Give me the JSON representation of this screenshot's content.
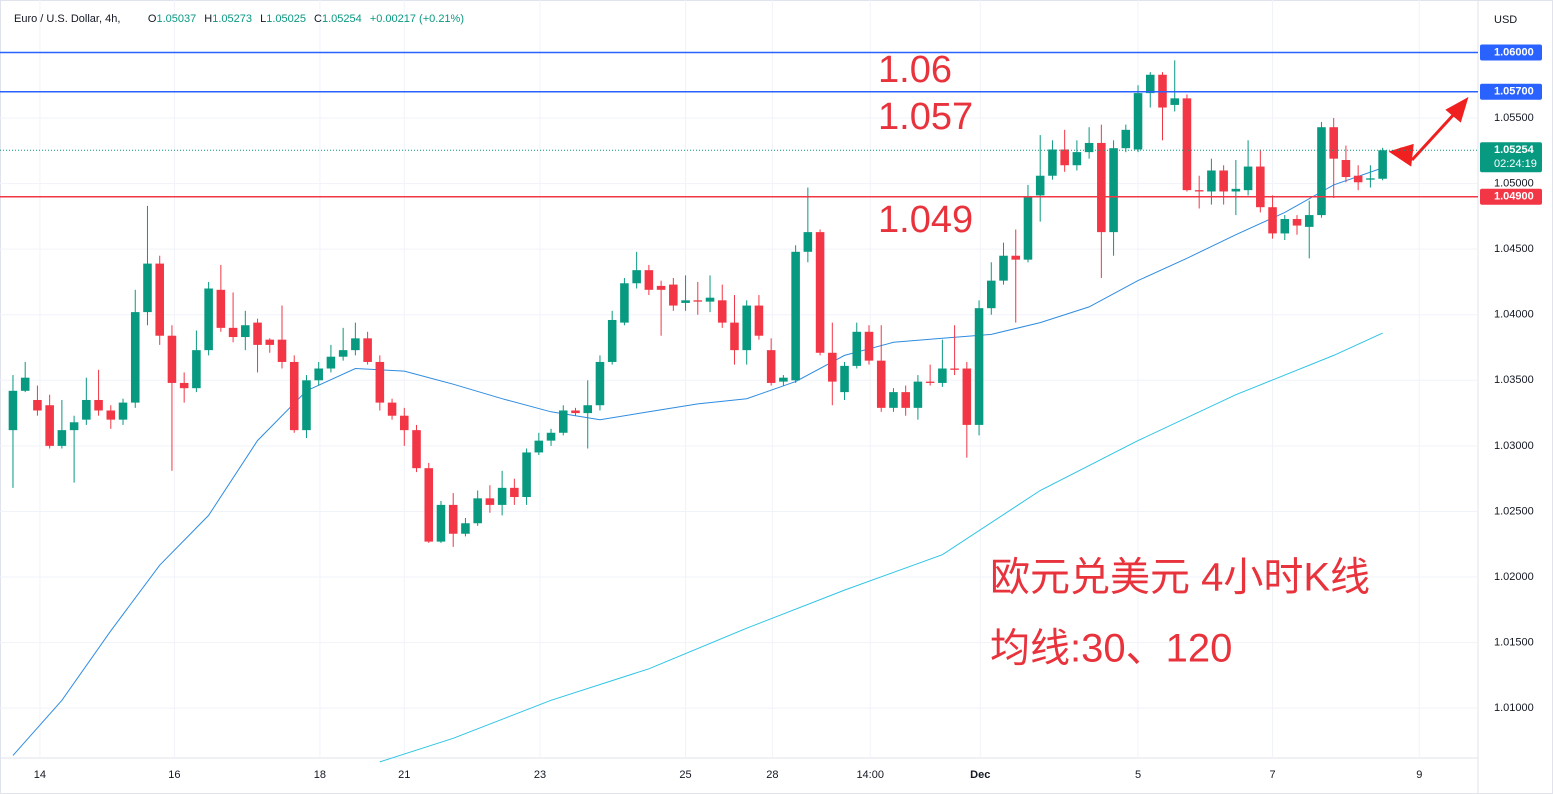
{
  "chart_data": {
    "type": "candlestick",
    "header": {
      "symbol": "Euro / U.S. Dollar, 4h,",
      "open_label": "O",
      "open": 1.05037,
      "high_label": "H",
      "high": 1.05273,
      "low_label": "L",
      "low": 1.05025,
      "close_label": "C",
      "close": 1.05254,
      "change": "+0.00217 (+0.21%)"
    },
    "currency": "USD",
    "up_color": "#089981",
    "down_color": "#f23645",
    "xlim": [
      -1.06,
      119.8
    ],
    "ylim": [
      1.0062,
      1.064
    ],
    "yticks": [
      {
        "value": 1.01,
        "label": "1.01000"
      },
      {
        "value": 1.015,
        "label": "1.01500"
      },
      {
        "value": 1.02,
        "label": "1.02000"
      },
      {
        "value": 1.025,
        "label": "1.02500"
      },
      {
        "value": 1.03,
        "label": "1.03000"
      },
      {
        "value": 1.035,
        "label": "1.03500"
      },
      {
        "value": 1.04,
        "label": "1.04000"
      },
      {
        "value": 1.045,
        "label": "1.04500"
      },
      {
        "value": 1.05,
        "label": "1.05000"
      },
      {
        "value": 1.055,
        "label": "1.05500"
      }
    ],
    "xticks": [
      {
        "value": 2.2,
        "label": "14"
      },
      {
        "value": 13.2,
        "label": "16"
      },
      {
        "value": 25.1,
        "label": "18"
      },
      {
        "value": 32.0,
        "label": "21"
      },
      {
        "value": 43.1,
        "label": "23"
      },
      {
        "value": 55.0,
        "label": "25"
      },
      {
        "value": 62.1,
        "label": "28"
      },
      {
        "value": 70.1,
        "label": "14:00"
      },
      {
        "value": 79.1,
        "label": "Dec"
      },
      {
        "value": 92.0,
        "label": "5"
      },
      {
        "value": 103.0,
        "label": "7"
      },
      {
        "value": 115.0,
        "label": "9"
      }
    ],
    "grid": true,
    "hlines": [
      {
        "value": 1.06,
        "label": "1.06000",
        "color": "#2962ff"
      },
      {
        "value": 1.057,
        "label": "1.05700",
        "color": "#2962ff"
      },
      {
        "value": 1.049,
        "label": "1.04900",
        "color": "#f23645"
      }
    ],
    "last_price": {
      "value": 1.05254,
      "countdown": "02:24:19",
      "color": "#089981"
    },
    "annotations": [
      {
        "text": "1.06"
      },
      {
        "text": "1.057"
      },
      {
        "text": "1.049"
      },
      {
        "text": "欧元兑美元 4小时K线"
      },
      {
        "text": "均线:30、120"
      }
    ],
    "candles": [
      {
        "open": 1.0312,
        "high": 1.0354,
        "low": 1.0268,
        "close": 1.0342
      },
      {
        "open": 1.0342,
        "high": 1.0364,
        "low": 1.0341,
        "close": 1.0352
      },
      {
        "open": 1.0335,
        "high": 1.0346,
        "low": 1.0323,
        "close": 1.0327
      },
      {
        "open": 1.0331,
        "high": 1.0339,
        "low": 1.0298,
        "close": 1.03
      },
      {
        "open": 1.03,
        "high": 1.0335,
        "low": 1.0298,
        "close": 1.0312
      },
      {
        "open": 1.0312,
        "high": 1.0323,
        "low": 1.0272,
        "close": 1.0318
      },
      {
        "open": 1.032,
        "high": 1.0352,
        "low": 1.0316,
        "close": 1.0335
      },
      {
        "open": 1.0335,
        "high": 1.0358,
        "low": 1.0323,
        "close": 1.0327
      },
      {
        "open": 1.0327,
        "high": 1.0331,
        "low": 1.0313,
        "close": 1.032
      },
      {
        "open": 1.032,
        "high": 1.0336,
        "low": 1.0316,
        "close": 1.0333
      },
      {
        "open": 1.0333,
        "high": 1.0419,
        "low": 1.0329,
        "close": 1.0402
      },
      {
        "open": 1.0402,
        "high": 1.0483,
        "low": 1.0392,
        "close": 1.0439
      },
      {
        "open": 1.0439,
        "high": 1.0445,
        "low": 1.0377,
        "close": 1.0384
      },
      {
        "open": 1.0384,
        "high": 1.0392,
        "low": 1.0281,
        "close": 1.0348
      },
      {
        "open": 1.0348,
        "high": 1.0356,
        "low": 1.0333,
        "close": 1.0344
      },
      {
        "open": 1.0344,
        "high": 1.0388,
        "low": 1.0341,
        "close": 1.0373
      },
      {
        "open": 1.0373,
        "high": 1.0425,
        "low": 1.0369,
        "close": 1.042
      },
      {
        "open": 1.0419,
        "high": 1.0438,
        "low": 1.0387,
        "close": 1.039
      },
      {
        "open": 1.039,
        "high": 1.0417,
        "low": 1.0379,
        "close": 1.0383
      },
      {
        "open": 1.0383,
        "high": 1.0403,
        "low": 1.0373,
        "close": 1.0392
      },
      {
        "open": 1.0394,
        "high": 1.0397,
        "low": 1.0356,
        "close": 1.0377
      },
      {
        "open": 1.0381,
        "high": 1.0382,
        "low": 1.0371,
        "close": 1.0377
      },
      {
        "open": 1.0381,
        "high": 1.0407,
        "low": 1.0359,
        "close": 1.0364
      },
      {
        "open": 1.0364,
        "high": 1.0369,
        "low": 1.031,
        "close": 1.0312
      },
      {
        "open": 1.0312,
        "high": 1.0354,
        "low": 1.0306,
        "close": 1.035
      },
      {
        "open": 1.035,
        "high": 1.0364,
        "low": 1.0346,
        "close": 1.0359
      },
      {
        "open": 1.0359,
        "high": 1.0377,
        "low": 1.0356,
        "close": 1.0368
      },
      {
        "open": 1.0368,
        "high": 1.039,
        "low": 1.0365,
        "close": 1.0373
      },
      {
        "open": 1.0373,
        "high": 1.0394,
        "low": 1.0369,
        "close": 1.0382
      },
      {
        "open": 1.0382,
        "high": 1.0387,
        "low": 1.0362,
        "close": 1.0364
      },
      {
        "open": 1.0364,
        "high": 1.0369,
        "low": 1.0327,
        "close": 1.0333
      },
      {
        "open": 1.0333,
        "high": 1.0336,
        "low": 1.032,
        "close": 1.0323
      },
      {
        "open": 1.0323,
        "high": 1.0329,
        "low": 1.03,
        "close": 1.0312
      },
      {
        "open": 1.0312,
        "high": 1.0316,
        "low": 1.028,
        "close": 1.0283
      },
      {
        "open": 1.0283,
        "high": 1.0287,
        "low": 1.0226,
        "close": 1.0227
      },
      {
        "open": 1.0227,
        "high": 1.0258,
        "low": 1.0226,
        "close": 1.0255
      },
      {
        "open": 1.0255,
        "high": 1.0264,
        "low": 1.0223,
        "close": 1.0233
      },
      {
        "open": 1.0233,
        "high": 1.0245,
        "low": 1.0231,
        "close": 1.0241
      },
      {
        "open": 1.0241,
        "high": 1.0266,
        "low": 1.0239,
        "close": 1.026
      },
      {
        "open": 1.026,
        "high": 1.027,
        "low": 1.0249,
        "close": 1.0255
      },
      {
        "open": 1.0255,
        "high": 1.0281,
        "low": 1.0247,
        "close": 1.0268
      },
      {
        "open": 1.0268,
        "high": 1.0275,
        "low": 1.0255,
        "close": 1.0261
      },
      {
        "open": 1.0261,
        "high": 1.0298,
        "low": 1.0255,
        "close": 1.0295
      },
      {
        "open": 1.0295,
        "high": 1.031,
        "low": 1.0293,
        "close": 1.0304
      },
      {
        "open": 1.0304,
        "high": 1.0313,
        "low": 1.03,
        "close": 1.031
      },
      {
        "open": 1.031,
        "high": 1.0331,
        "low": 1.0308,
        "close": 1.0327
      },
      {
        "open": 1.0327,
        "high": 1.0329,
        "low": 1.0323,
        "close": 1.0325
      },
      {
        "open": 1.0325,
        "high": 1.035,
        "low": 1.0298,
        "close": 1.0331
      },
      {
        "open": 1.0331,
        "high": 1.0369,
        "low": 1.0327,
        "close": 1.0364
      },
      {
        "open": 1.0364,
        "high": 1.0403,
        "low": 1.0362,
        "close": 1.0396
      },
      {
        "open": 1.0394,
        "high": 1.0428,
        "low": 1.0392,
        "close": 1.0424
      },
      {
        "open": 1.0424,
        "high": 1.0448,
        "low": 1.042,
        "close": 1.0434
      },
      {
        "open": 1.0434,
        "high": 1.0438,
        "low": 1.0415,
        "close": 1.0419
      },
      {
        "open": 1.0422,
        "high": 1.0426,
        "low": 1.0384,
        "close": 1.0419
      },
      {
        "open": 1.0423,
        "high": 1.0428,
        "low": 1.0403,
        "close": 1.0407
      },
      {
        "open": 1.0409,
        "high": 1.043,
        "low": 1.0403,
        "close": 1.0411
      },
      {
        "open": 1.0411,
        "high": 1.0425,
        "low": 1.04,
        "close": 1.041
      },
      {
        "open": 1.041,
        "high": 1.043,
        "low": 1.0402,
        "close": 1.0413
      },
      {
        "open": 1.0411,
        "high": 1.0423,
        "low": 1.039,
        "close": 1.0394
      },
      {
        "open": 1.0394,
        "high": 1.0415,
        "low": 1.0362,
        "close": 1.0373
      },
      {
        "open": 1.0373,
        "high": 1.0411,
        "low": 1.0362,
        "close": 1.0407
      },
      {
        "open": 1.0407,
        "high": 1.0415,
        "low": 1.0381,
        "close": 1.0384
      },
      {
        "open": 1.0373,
        "high": 1.0382,
        "low": 1.0346,
        "close": 1.0348
      },
      {
        "open": 1.0349,
        "high": 1.0354,
        "low": 1.0346,
        "close": 1.0352
      },
      {
        "open": 1.035,
        "high": 1.0453,
        "low": 1.0348,
        "close": 1.0448
      },
      {
        "open": 1.0448,
        "high": 1.0497,
        "low": 1.044,
        "close": 1.0463
      },
      {
        "open": 1.0463,
        "high": 1.0465,
        "low": 1.0369,
        "close": 1.0371
      },
      {
        "open": 1.0371,
        "high": 1.0394,
        "low": 1.0331,
        "close": 1.0349
      },
      {
        "open": 1.0341,
        "high": 1.0364,
        "low": 1.0335,
        "close": 1.0361
      },
      {
        "open": 1.0361,
        "high": 1.0394,
        "low": 1.0359,
        "close": 1.0387
      },
      {
        "open": 1.0387,
        "high": 1.0392,
        "low": 1.0362,
        "close": 1.0365
      },
      {
        "open": 1.0365,
        "high": 1.0392,
        "low": 1.0326,
        "close": 1.0329
      },
      {
        "open": 1.0329,
        "high": 1.0344,
        "low": 1.0326,
        "close": 1.0341
      },
      {
        "open": 1.0341,
        "high": 1.0346,
        "low": 1.0323,
        "close": 1.0329
      },
      {
        "open": 1.0329,
        "high": 1.0354,
        "low": 1.032,
        "close": 1.0349
      },
      {
        "open": 1.0349,
        "high": 1.0362,
        "low": 1.0346,
        "close": 1.0348
      },
      {
        "open": 1.0348,
        "high": 1.0381,
        "low": 1.0345,
        "close": 1.0359
      },
      {
        "open": 1.0359,
        "high": 1.0392,
        "low": 1.0354,
        "close": 1.0358
      },
      {
        "open": 1.0359,
        "high": 1.0364,
        "low": 1.0291,
        "close": 1.0316
      },
      {
        "open": 1.0316,
        "high": 1.0411,
        "low": 1.0308,
        "close": 1.0405
      },
      {
        "open": 1.0405,
        "high": 1.044,
        "low": 1.04,
        "close": 1.0426
      },
      {
        "open": 1.0426,
        "high": 1.0455,
        "low": 1.0423,
        "close": 1.0445
      },
      {
        "open": 1.0445,
        "high": 1.0465,
        "low": 1.0394,
        "close": 1.0442
      },
      {
        "open": 1.0442,
        "high": 1.0499,
        "low": 1.044,
        "close": 1.049
      },
      {
        "open": 1.0491,
        "high": 1.0537,
        "low": 1.0471,
        "close": 1.0506
      },
      {
        "open": 1.0506,
        "high": 1.0533,
        "low": 1.0503,
        "close": 1.0526
      },
      {
        "open": 1.0526,
        "high": 1.0541,
        "low": 1.0509,
        "close": 1.0514
      },
      {
        "open": 1.0514,
        "high": 1.0533,
        "low": 1.051,
        "close": 1.0524
      },
      {
        "open": 1.0524,
        "high": 1.0543,
        "low": 1.0519,
        "close": 1.0531
      },
      {
        "open": 1.0531,
        "high": 1.0545,
        "low": 1.0428,
        "close": 1.0463
      },
      {
        "open": 1.0463,
        "high": 1.0533,
        "low": 1.0445,
        "close": 1.0527
      },
      {
        "open": 1.0527,
        "high": 1.0545,
        "low": 1.0524,
        "close": 1.0541
      },
      {
        "open": 1.0526,
        "high": 1.0575,
        "low": 1.0524,
        "close": 1.0569
      },
      {
        "open": 1.0569,
        "high": 1.0585,
        "low": 1.0558,
        "close": 1.0583
      },
      {
        "open": 1.0583,
        "high": 1.0585,
        "low": 1.0533,
        "close": 1.0558
      },
      {
        "open": 1.056,
        "high": 1.0594,
        "low": 1.0555,
        "close": 1.0565
      },
      {
        "open": 1.0565,
        "high": 1.0568,
        "low": 1.0494,
        "close": 1.0495
      },
      {
        "open": 1.0495,
        "high": 1.0506,
        "low": 1.0481,
        "close": 1.0494
      },
      {
        "open": 1.0494,
        "high": 1.0519,
        "low": 1.0484,
        "close": 1.051
      },
      {
        "open": 1.051,
        "high": 1.0514,
        "low": 1.0484,
        "close": 1.0494
      },
      {
        "open": 1.0494,
        "high": 1.0518,
        "low": 1.0476,
        "close": 1.0496
      },
      {
        "open": 1.0495,
        "high": 1.0533,
        "low": 1.0491,
        "close": 1.0513
      },
      {
        "open": 1.0513,
        "high": 1.0526,
        "low": 1.0478,
        "close": 1.0482
      },
      {
        "open": 1.0482,
        "high": 1.0491,
        "low": 1.0458,
        "close": 1.0462
      },
      {
        "open": 1.0462,
        "high": 1.0476,
        "low": 1.0457,
        "close": 1.0473
      },
      {
        "open": 1.0473,
        "high": 1.0476,
        "low": 1.0461,
        "close": 1.0468
      },
      {
        "open": 1.0467,
        "high": 1.0487,
        "low": 1.0443,
        "close": 1.0476
      },
      {
        "open": 1.0476,
        "high": 1.0547,
        "low": 1.0474,
        "close": 1.0543
      },
      {
        "open": 1.0543,
        "high": 1.055,
        "low": 1.0489,
        "close": 1.0519
      },
      {
        "open": 1.0518,
        "high": 1.0529,
        "low": 1.0501,
        "close": 1.0505
      },
      {
        "open": 1.0506,
        "high": 1.0514,
        "low": 1.0495,
        "close": 1.0501
      },
      {
        "open": 1.0503,
        "high": 1.0514,
        "low": 1.0497,
        "close": 1.0504
      },
      {
        "open": 1.05037,
        "high": 1.05273,
        "low": 1.05025,
        "close": 1.05254
      }
    ],
    "series": [
      {
        "color": "#2f8ce0",
        "x": [
          0,
          4,
          8,
          12,
          16,
          20,
          24,
          28,
          32,
          36,
          40,
          44,
          48,
          52,
          56,
          60,
          64,
          68,
          72,
          76,
          80,
          84,
          88,
          92,
          96,
          100,
          104,
          108,
          112
        ],
        "values": [
          1.0064,
          1.0106,
          1.0159,
          1.0209,
          1.0247,
          1.0304,
          1.0342,
          1.0359,
          1.0357,
          1.0347,
          1.0336,
          1.0326,
          1.032,
          1.0326,
          1.0332,
          1.0336,
          1.0349,
          1.0369,
          1.0379,
          1.0382,
          1.0385,
          1.0394,
          1.0406,
          1.0426,
          1.0443,
          1.0461,
          1.0478,
          1.0499,
          1.0512
        ]
      },
      {
        "color": "#2ec4e6",
        "x": [
          30,
          36,
          44,
          52,
          60,
          68,
          76,
          84,
          92,
          100,
          108,
          112
        ],
        "values": [
          1.0059,
          1.0077,
          1.0106,
          1.013,
          1.0161,
          1.019,
          1.0217,
          1.0266,
          1.0304,
          1.0339,
          1.0369,
          1.0386
        ]
      }
    ]
  }
}
